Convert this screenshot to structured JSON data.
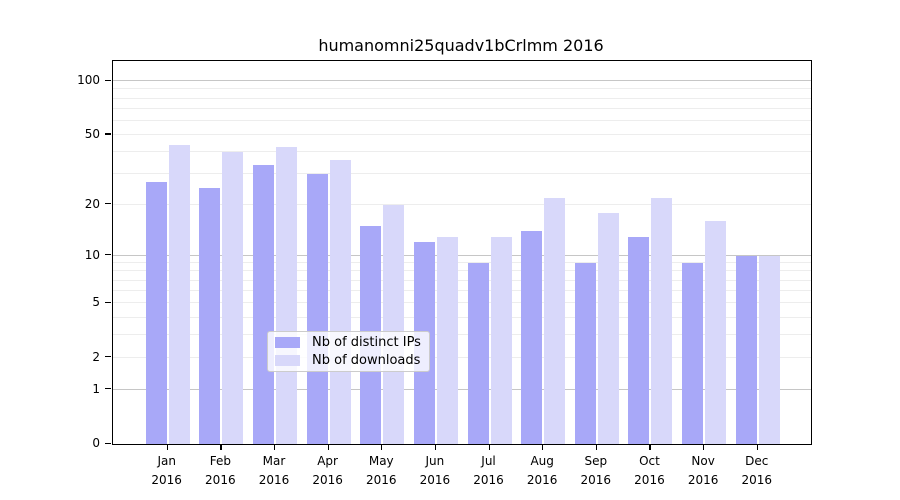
{
  "figure": {
    "title": "humanomni25quadv1bCrlmm 2016"
  },
  "chart_data": {
    "type": "bar",
    "title": "humanomni25quadv1bCrlmm 2016",
    "categories": [
      "Jan",
      "Feb",
      "Mar",
      "Apr",
      "May",
      "Jun",
      "Jul",
      "Aug",
      "Sep",
      "Oct",
      "Nov",
      "Dec"
    ],
    "year": "2016",
    "series": [
      {
        "name": "Nb of distinct IPs",
        "color": "#a8a8f8",
        "values": [
          27,
          25,
          34,
          30,
          15,
          12,
          9,
          14,
          9,
          13,
          9,
          10
        ]
      },
      {
        "name": "Nb of downloads",
        "color": "#d8d8fa",
        "values": [
          44,
          40,
          43,
          36,
          20,
          13,
          13,
          22,
          18,
          22,
          16,
          10
        ]
      }
    ],
    "y_ticks": [
      100,
      50,
      20,
      10,
      5,
      2,
      1,
      0
    ],
    "y_scale": "log10(1+y)",
    "ylim": [
      0,
      130
    ],
    "grid": "horizontal, minor at 2-9 and 20-90, major at 1/10/100",
    "legend_position": "bottom-center",
    "xlabel": "",
    "ylabel": ""
  }
}
